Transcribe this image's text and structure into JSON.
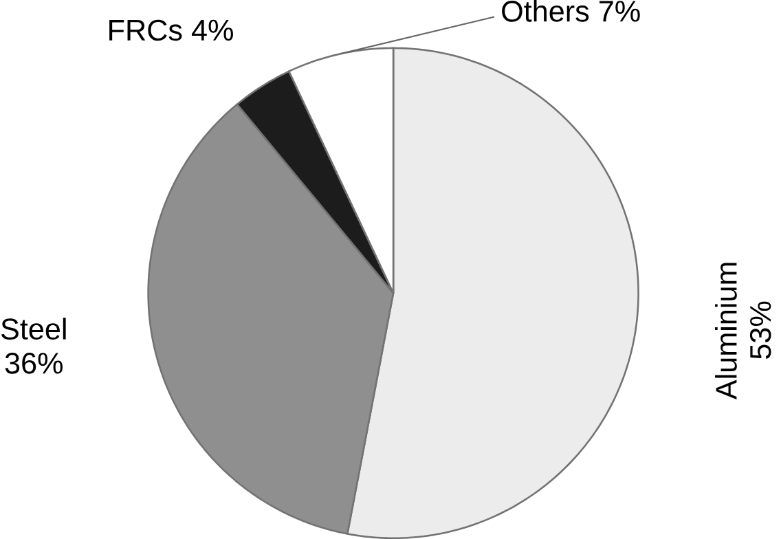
{
  "chart_data": {
    "type": "pie",
    "categories": [
      "Aluminium",
      "Steel",
      "FRCs",
      "Others"
    ],
    "values": [
      53,
      36,
      4,
      7
    ],
    "value_labels": [
      "53%",
      "36%",
      "4%",
      "7%"
    ],
    "colors": [
      "#ececec",
      "#8f8f8f",
      "#1c1c1c",
      "#ffffff"
    ]
  }
}
